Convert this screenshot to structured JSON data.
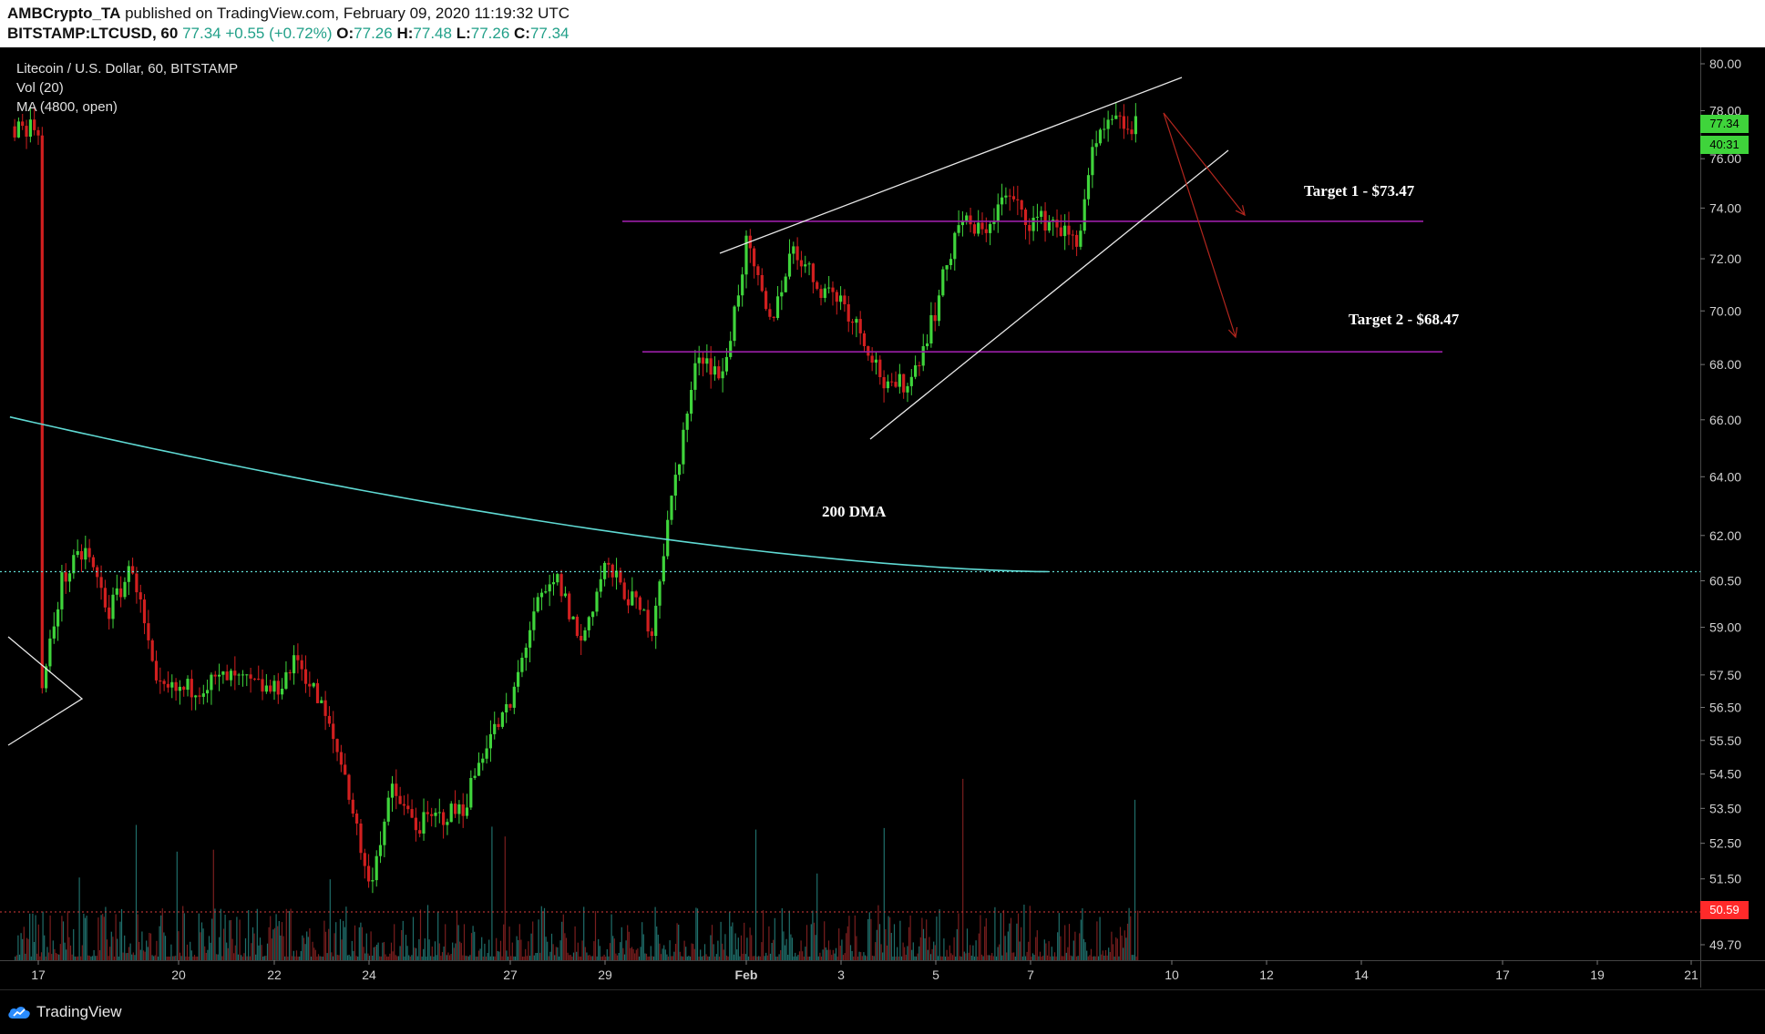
{
  "header": {
    "publisher": "AMBCrypto_TA",
    "published_text": "published on TradingView.com, February 09, 2020 11:19:32 UTC",
    "symbol_line": "BITSTAMP:LTCUSD, 60",
    "last": "77.34",
    "change": "+0.55 (+0.72%)",
    "o_label": "O:",
    "o_value": "77.26",
    "h_label": "H:",
    "h_value": "77.48",
    "l_label": "L:",
    "l_value": "77.26",
    "c_label": "C:",
    "c_value": "77.34"
  },
  "legend": {
    "title": "Litecoin / U.S. Dollar, 60, BITSTAMP",
    "vol": "Vol (20)",
    "ma": "MA (4800, open)"
  },
  "annotations": {
    "target1": "Target 1 - $73.47",
    "target2": "Target 2 - $68.47",
    "dma": "200 DMA"
  },
  "badges": {
    "price": "77.34",
    "countdown": "40:31",
    "level": "50.59"
  },
  "footer": {
    "logo_text": "TradingView"
  },
  "colors": {
    "up": "#3fd43b",
    "down": "#d11f1f",
    "ma": "#5fd9d3",
    "target_line": "#9b1fa8",
    "price_badge": "#3fd43b",
    "level_badge": "#ff2a2a"
  },
  "chart_data": {
    "type": "candlestick",
    "y_axis": {
      "ticks": [
        "80.00",
        "78.00",
        "76.00",
        "74.00",
        "72.00",
        "70.00",
        "68.00",
        "66.00",
        "64.00",
        "62.00",
        "60.50",
        "59.00",
        "57.50",
        "56.50",
        "55.50",
        "54.50",
        "53.50",
        "52.50",
        "51.50",
        "49.70"
      ],
      "scale": "log"
    },
    "x_axis": {
      "ticks": [
        "17",
        "20",
        "22",
        "24",
        "27",
        "29",
        "Feb",
        "3",
        "5",
        "7",
        "10",
        "12",
        "14",
        "17",
        "19",
        "21"
      ]
    },
    "price_path": [
      [
        "17",
        56.3
      ],
      [
        "17.5",
        60.5
      ],
      [
        "18",
        61.5
      ],
      [
        "18.5",
        59.5
      ],
      [
        "19",
        61.0
      ],
      [
        "19.5",
        57.0
      ],
      [
        "20",
        57.0
      ],
      [
        "21",
        57.4
      ],
      [
        "22",
        57.0
      ],
      [
        "22.5",
        58.0
      ],
      [
        "23",
        56.5
      ],
      [
        "23.5",
        54.5
      ],
      [
        "24",
        51.3
      ],
      [
        "24.5",
        54.0
      ],
      [
        "25",
        53.0
      ],
      [
        "26",
        53.5
      ],
      [
        "26.5",
        55.5
      ],
      [
        "27",
        56.5
      ],
      [
        "27.5",
        59.5
      ],
      [
        "28",
        60.5
      ],
      [
        "28.5",
        58.5
      ],
      [
        "29",
        61.0
      ],
      [
        "29.5",
        60.0
      ],
      [
        "30",
        59.0
      ],
      [
        "30.5",
        64.0
      ],
      [
        "31",
        68.5
      ],
      [
        "31.5",
        67.5
      ],
      [
        "Feb 1",
        72.5
      ],
      [
        "Feb 1.5",
        69.5
      ],
      [
        "Feb 2",
        72.5
      ],
      [
        "Feb 2.5",
        71.0
      ],
      [
        "Feb 3",
        70.5
      ],
      [
        "Feb 3.5",
        69.0
      ],
      [
        "Feb 4",
        67.0
      ],
      [
        "Feb 4.5",
        67.5
      ],
      [
        "Feb 5",
        70.0
      ],
      [
        "Feb 5.5",
        73.5
      ],
      [
        "Feb 6",
        73.0
      ],
      [
        "Feb 6.5",
        74.5
      ],
      [
        "Feb 7",
        73.5
      ],
      [
        "Feb 7.5",
        73.5
      ],
      [
        "Feb 8",
        72.5
      ],
      [
        "Feb 8.3",
        76.0
      ],
      [
        "Feb 8.7",
        77.5
      ],
      [
        "Feb 9",
        77.34
      ]
    ],
    "levels": {
      "target1": 73.47,
      "target2": 68.47,
      "dotted_ma": 60.8,
      "dotted_low": 50.59
    }
  }
}
